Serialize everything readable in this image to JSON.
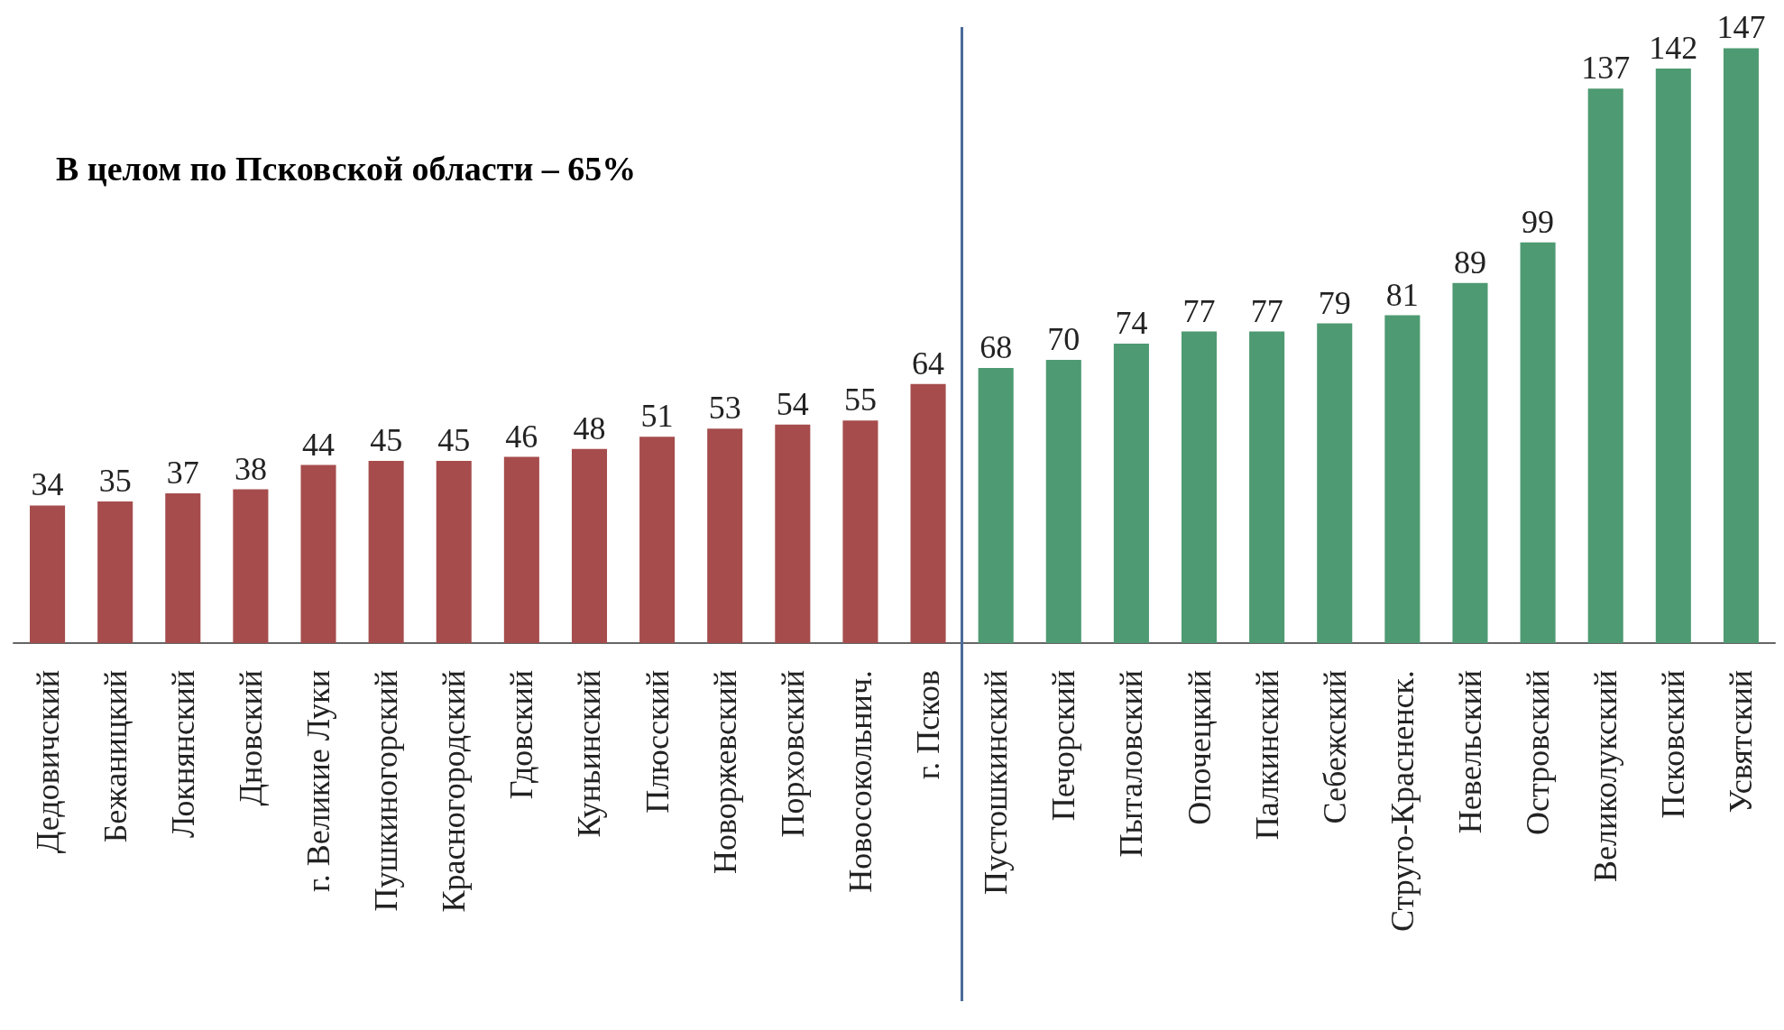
{
  "chart_data": {
    "type": "bar",
    "categories": [
      "Дедовичский",
      "Бежаницкий",
      "Локнянский",
      "Дновский",
      "г. Великие Луки",
      "Пушкиногорский",
      "Красногородский",
      "Гдовский",
      "Куньинский",
      "Плюсский",
      "Новоржевский",
      "Порховский",
      "Новосокольнич.",
      "г. Псков",
      "Пустошкинский",
      "Печорский",
      "Пыталовский",
      "Опочецкий",
      "Палкинский",
      "Себежский",
      "Струго-Красненск.",
      "Невельский",
      "Островский",
      "Великолукский",
      "Псковский",
      "Усвятский"
    ],
    "values": [
      34,
      35,
      37,
      38,
      44,
      45,
      45,
      46,
      48,
      51,
      53,
      54,
      55,
      64,
      68,
      70,
      74,
      77,
      77,
      79,
      81,
      89,
      99,
      137,
      142,
      147
    ],
    "colors": [
      "#a64c4c",
      "#a64c4c",
      "#a64c4c",
      "#a64c4c",
      "#a64c4c",
      "#a64c4c",
      "#a64c4c",
      "#a64c4c",
      "#a64c4c",
      "#a64c4c",
      "#a64c4c",
      "#a64c4c",
      "#a64c4c",
      "#a64c4c",
      "#4e9a72",
      "#4e9a72",
      "#4e9a72",
      "#4e9a72",
      "#4e9a72",
      "#4e9a72",
      "#4e9a72",
      "#4e9a72",
      "#4e9a72",
      "#4e9a72",
      "#4e9a72",
      "#4e9a72"
    ],
    "data_labels": true,
    "annotations": [
      "В целом по Псковской области – 65%"
    ],
    "grid": false
  }
}
